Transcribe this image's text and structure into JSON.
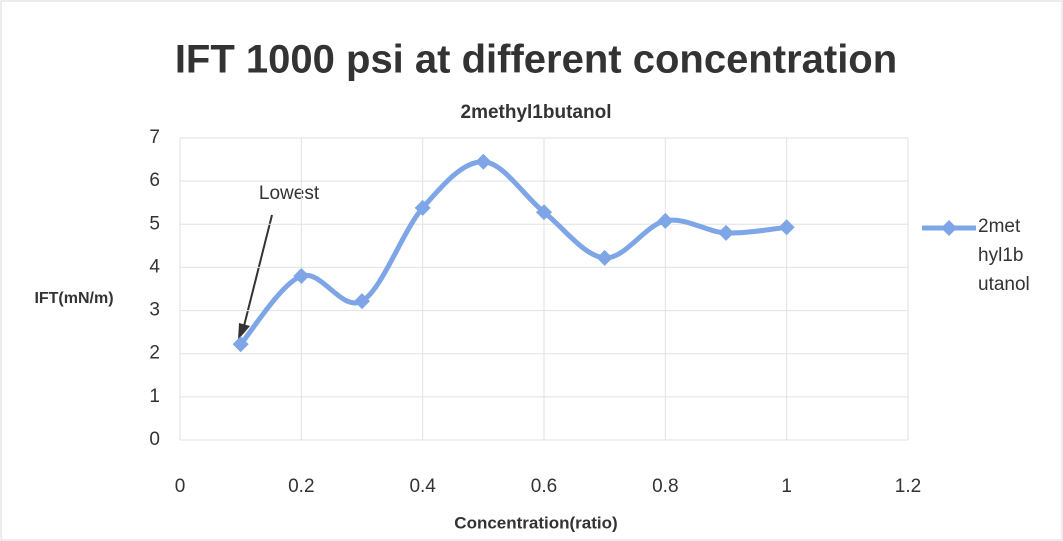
{
  "chart_data": {
    "type": "line",
    "title": "IFT 1000 psi at different concentration",
    "subtitle": "2methyl1butanol",
    "x_label": "Concentration(ratio)",
    "y_label": "IFT(mN/m)",
    "annotation": "Lowest",
    "x": [
      0.1,
      0.2,
      0.3,
      0.4,
      0.5,
      0.6,
      0.7,
      0.8,
      0.9,
      1.0
    ],
    "series": [
      {
        "name": "2methyl1butanol",
        "color": "#7ea6e6",
        "values": [
          2.22,
          3.8,
          3.22,
          5.38,
          6.45,
          5.28,
          4.22,
          5.08,
          4.8,
          4.93
        ]
      }
    ],
    "xlim": [
      0,
      1.2
    ],
    "xticks": [
      0,
      0.2,
      0.4,
      0.6,
      0.8,
      1,
      1.2
    ],
    "ylim": [
      0,
      7
    ],
    "yticks": [
      0,
      1,
      2,
      3,
      4,
      5,
      6,
      7
    ],
    "grid": true,
    "smooth": true,
    "legend": "right"
  }
}
